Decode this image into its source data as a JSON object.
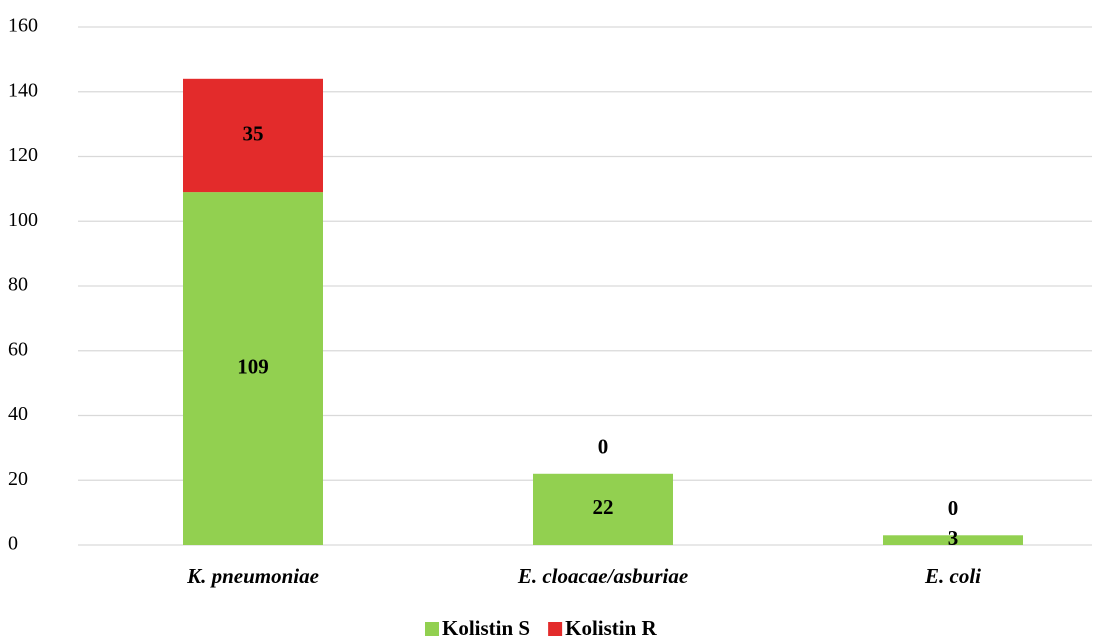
{
  "chart_data": {
    "type": "stacked_bar",
    "categories": [
      "K. pneumoniae",
      "E. cloacae/asburiae",
      "E. coli"
    ],
    "series": [
      {
        "name": "Kolistin S",
        "color": "#92d050",
        "values": [
          109,
          22,
          3
        ]
      },
      {
        "name": "Kolistin R",
        "color": "#e32b2b",
        "values": [
          35,
          0,
          0
        ]
      }
    ],
    "ylim": [
      0,
      160
    ],
    "yticks": [
      0,
      20,
      40,
      60,
      80,
      100,
      120,
      140,
      160
    ],
    "grid": true,
    "legend": "bottom"
  }
}
